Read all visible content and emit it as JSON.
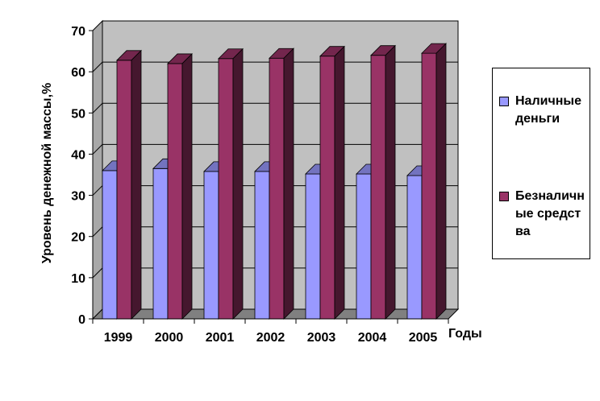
{
  "chart_data": {
    "type": "bar",
    "categories": [
      "1999",
      "2000",
      "2001",
      "2002",
      "2003",
      "2004",
      "2005"
    ],
    "series": [
      {
        "name": "Наличные деньги",
        "values": [
          36,
          36.5,
          35.8,
          35.8,
          35.2,
          35.2,
          34.8
        ],
        "color": "#9999ff"
      },
      {
        "name": "Безналичные средства",
        "values": [
          62.8,
          62,
          63.2,
          63.3,
          63.8,
          64,
          64.5
        ],
        "color": "#993366"
      }
    ],
    "title": "",
    "xlabel": "Годы",
    "ylabel": "Уровень денежной массы,%",
    "ylim": [
      0,
      70
    ],
    "yticks": [
      "0",
      "10",
      "20",
      "30",
      "40",
      "50",
      "60",
      "70"
    ],
    "grid": true,
    "legend_position": "right"
  }
}
